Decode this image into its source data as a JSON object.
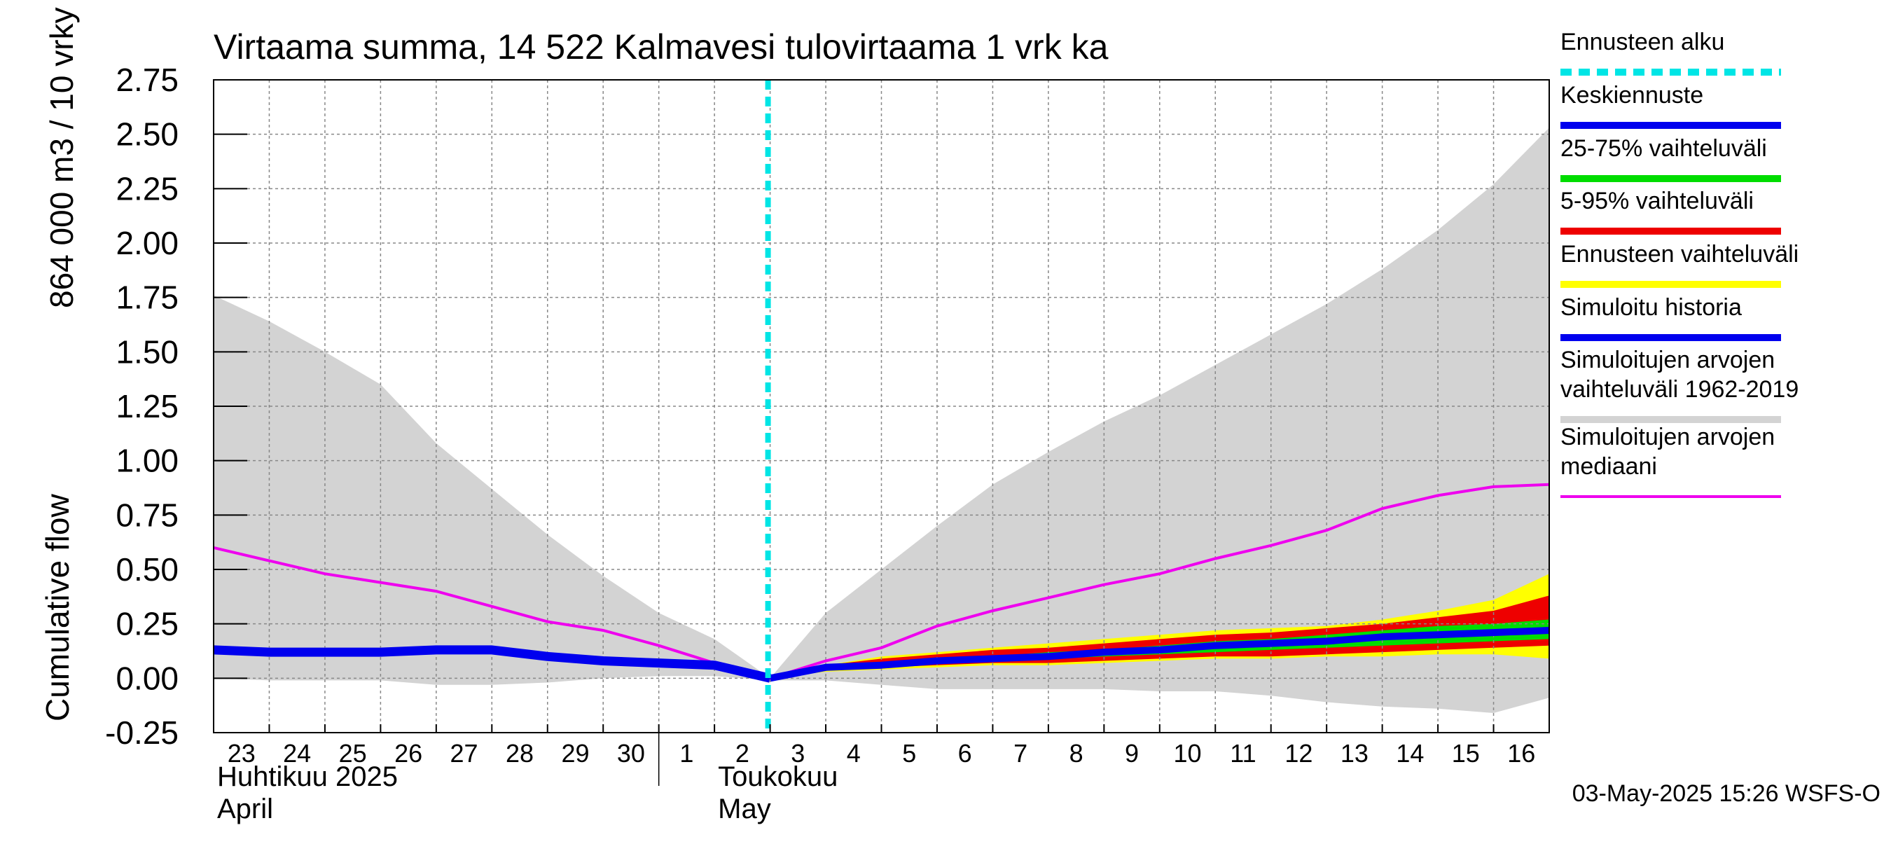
{
  "chart_data": {
    "type": "area",
    "title": "Virtaama summa, 14 522 Kalmavesi tulovirtaama 1 vrk ka",
    "ylabel_top": "864 000 m3 / 10 vrky",
    "ylabel_bottom": "Cumulative flow",
    "ylim": [
      -0.25,
      2.75
    ],
    "y_ticks": [
      -0.25,
      0.0,
      0.25,
      0.5,
      0.75,
      1.0,
      1.25,
      1.5,
      1.75,
      2.0,
      2.25,
      2.5,
      2.75
    ],
    "y_tick_labels": [
      "-0.25",
      "0.00",
      "0.25",
      "0.50",
      "0.75",
      "1.00",
      "1.25",
      "1.50",
      "1.75",
      "2.00",
      "2.25",
      "2.50",
      "2.75"
    ],
    "x_range_days": [
      0,
      24
    ],
    "x_day_labels": [
      "23",
      "24",
      "25",
      "26",
      "27",
      "28",
      "29",
      "30",
      "1",
      "2",
      "3",
      "4",
      "5",
      "6",
      "7",
      "8",
      "9",
      "10",
      "11",
      "12",
      "13",
      "14",
      "15",
      "16"
    ],
    "month_labels": [
      {
        "fi": "Huhtikuu  2025",
        "en": "April",
        "day": 0
      },
      {
        "fi": "Toukokuu",
        "en": "May",
        "day": 9
      }
    ],
    "month_boundary_day": 8,
    "forecast_start_day": 10,
    "grid": true,
    "legend_position": "right",
    "footer": "03-May-2025 15:26 WSFS-O",
    "colors": {
      "forecast_start": "#00e5e5",
      "mean_forecast": "#0000ee",
      "band_25_75": "#00dd00",
      "band_5_95": "#ee0000",
      "forecast_range": "#ffff00",
      "simulated_history": "#0000ee",
      "historical_range": "#d3d3d3",
      "historical_median": "#ee00ee"
    },
    "legend": [
      {
        "label": "Ennusteen alku",
        "style": "dashed",
        "color": "#00e5e5"
      },
      {
        "label": "Keskiennuste",
        "style": "line",
        "color": "#0000ee"
      },
      {
        "label": "25-75% vaihteluväli",
        "style": "line",
        "color": "#00dd00"
      },
      {
        "label": "5-95% vaihteluväli",
        "style": "line",
        "color": "#ee0000"
      },
      {
        "label": "Ennusteen vaihteluväli",
        "style": "line",
        "color": "#ffff00"
      },
      {
        "label": "Simuloitu historia",
        "style": "line",
        "color": "#0000ee"
      },
      {
        "label": "Simuloitujen arvojen\nvaihteluväli 1962-2019",
        "style": "line",
        "color": "#d3d3d3"
      },
      {
        "label": "Simuloitujen arvojen\nmediaani",
        "style": "line",
        "color": "#ee00ee"
      }
    ],
    "series": {
      "historical_range_upper": [
        [
          0,
          1.76
        ],
        [
          1,
          1.64
        ],
        [
          2,
          1.5
        ],
        [
          3,
          1.35
        ],
        [
          4,
          1.08
        ],
        [
          5,
          0.87
        ],
        [
          6,
          0.66
        ],
        [
          7,
          0.47
        ],
        [
          8,
          0.3
        ],
        [
          9,
          0.18
        ],
        [
          10,
          0.0
        ],
        [
          11,
          0.3
        ],
        [
          12,
          0.5
        ],
        [
          13,
          0.7
        ],
        [
          14,
          0.89
        ],
        [
          15,
          1.04
        ],
        [
          16,
          1.18
        ],
        [
          17,
          1.3
        ],
        [
          18,
          1.44
        ],
        [
          19,
          1.58
        ],
        [
          20,
          1.72
        ],
        [
          21,
          1.88
        ],
        [
          22,
          2.06
        ],
        [
          23,
          2.27
        ],
        [
          24,
          2.53
        ]
      ],
      "historical_range_lower": [
        [
          0,
          0.0
        ],
        [
          1,
          -0.01
        ],
        [
          2,
          -0.01
        ],
        [
          3,
          -0.01
        ],
        [
          4,
          -0.03
        ],
        [
          5,
          -0.03
        ],
        [
          6,
          -0.02
        ],
        [
          7,
          0.0
        ],
        [
          8,
          0.01
        ],
        [
          9,
          0.01
        ],
        [
          10,
          -0.01
        ],
        [
          11,
          -0.01
        ],
        [
          12,
          -0.03
        ],
        [
          13,
          -0.05
        ],
        [
          14,
          -0.05
        ],
        [
          15,
          -0.05
        ],
        [
          16,
          -0.05
        ],
        [
          17,
          -0.06
        ],
        [
          18,
          -0.06
        ],
        [
          19,
          -0.08
        ],
        [
          20,
          -0.11
        ],
        [
          21,
          -0.13
        ],
        [
          22,
          -0.14
        ],
        [
          23,
          -0.16
        ],
        [
          24,
          -0.09
        ]
      ],
      "historical_median": [
        [
          0,
          0.6
        ],
        [
          1,
          0.54
        ],
        [
          2,
          0.48
        ],
        [
          3,
          0.44
        ],
        [
          4,
          0.4
        ],
        [
          5,
          0.33
        ],
        [
          6,
          0.26
        ],
        [
          7,
          0.22
        ],
        [
          8,
          0.15
        ],
        [
          9,
          0.07
        ],
        [
          10,
          0.0
        ],
        [
          11,
          0.08
        ],
        [
          12,
          0.14
        ],
        [
          13,
          0.24
        ],
        [
          14,
          0.31
        ],
        [
          15,
          0.37
        ],
        [
          16,
          0.43
        ],
        [
          17,
          0.48
        ],
        [
          18,
          0.55
        ],
        [
          19,
          0.61
        ],
        [
          20,
          0.68
        ],
        [
          21,
          0.78
        ],
        [
          22,
          0.84
        ],
        [
          23,
          0.88
        ],
        [
          24,
          0.89
        ]
      ],
      "simulated_history": [
        [
          0,
          0.13
        ],
        [
          1,
          0.12
        ],
        [
          2,
          0.12
        ],
        [
          3,
          0.12
        ],
        [
          4,
          0.13
        ],
        [
          5,
          0.13
        ],
        [
          6,
          0.1
        ],
        [
          7,
          0.08
        ],
        [
          8,
          0.07
        ],
        [
          9,
          0.06
        ],
        [
          10,
          0.0
        ]
      ],
      "forecast_range_upper": [
        [
          10,
          0.0
        ],
        [
          11,
          0.06
        ],
        [
          12,
          0.1
        ],
        [
          13,
          0.12
        ],
        [
          14,
          0.14
        ],
        [
          15,
          0.16
        ],
        [
          16,
          0.18
        ],
        [
          17,
          0.2
        ],
        [
          18,
          0.22
        ],
        [
          19,
          0.23
        ],
        [
          20,
          0.24
        ],
        [
          21,
          0.27
        ],
        [
          22,
          0.31
        ],
        [
          23,
          0.36
        ],
        [
          24,
          0.48
        ]
      ],
      "forecast_range_lower": [
        [
          10,
          0.0
        ],
        [
          11,
          0.03
        ],
        [
          12,
          0.04
        ],
        [
          13,
          0.05
        ],
        [
          14,
          0.06
        ],
        [
          15,
          0.06
        ],
        [
          16,
          0.07
        ],
        [
          17,
          0.08
        ],
        [
          18,
          0.09
        ],
        [
          19,
          0.09
        ],
        [
          20,
          0.1
        ],
        [
          21,
          0.1
        ],
        [
          22,
          0.11
        ],
        [
          23,
          0.11
        ],
        [
          24,
          0.09
        ]
      ],
      "band_5_95_upper": [
        [
          10,
          0.0
        ],
        [
          11,
          0.06
        ],
        [
          12,
          0.09
        ],
        [
          13,
          0.11
        ],
        [
          14,
          0.13
        ],
        [
          15,
          0.14
        ],
        [
          16,
          0.16
        ],
        [
          17,
          0.18
        ],
        [
          18,
          0.2
        ],
        [
          19,
          0.21
        ],
        [
          20,
          0.23
        ],
        [
          21,
          0.25
        ],
        [
          22,
          0.28
        ],
        [
          23,
          0.31
        ],
        [
          24,
          0.38
        ]
      ],
      "band_5_95_lower": [
        [
          10,
          0.0
        ],
        [
          11,
          0.04
        ],
        [
          12,
          0.05
        ],
        [
          13,
          0.06
        ],
        [
          14,
          0.07
        ],
        [
          15,
          0.07
        ],
        [
          16,
          0.08
        ],
        [
          17,
          0.09
        ],
        [
          18,
          0.1
        ],
        [
          19,
          0.1
        ],
        [
          20,
          0.11
        ],
        [
          21,
          0.12
        ],
        [
          22,
          0.13
        ],
        [
          23,
          0.14
        ],
        [
          24,
          0.15
        ]
      ],
      "band_25_75_upper": [
        [
          10,
          0.0
        ],
        [
          11,
          0.05
        ],
        [
          12,
          0.07
        ],
        [
          13,
          0.09
        ],
        [
          14,
          0.1
        ],
        [
          15,
          0.12
        ],
        [
          16,
          0.13
        ],
        [
          17,
          0.15
        ],
        [
          18,
          0.17
        ],
        [
          19,
          0.18
        ],
        [
          20,
          0.2
        ],
        [
          21,
          0.22
        ],
        [
          22,
          0.24
        ],
        [
          23,
          0.25
        ],
        [
          24,
          0.27
        ]
      ],
      "band_25_75_lower": [
        [
          10,
          0.0
        ],
        [
          11,
          0.04
        ],
        [
          12,
          0.06
        ],
        [
          13,
          0.07
        ],
        [
          14,
          0.08
        ],
        [
          15,
          0.09
        ],
        [
          16,
          0.1
        ],
        [
          17,
          0.11
        ],
        [
          18,
          0.12
        ],
        [
          19,
          0.13
        ],
        [
          20,
          0.14
        ],
        [
          21,
          0.15
        ],
        [
          22,
          0.16
        ],
        [
          23,
          0.17
        ],
        [
          24,
          0.18
        ]
      ],
      "mean_forecast": [
        [
          10,
          0.0
        ],
        [
          11,
          0.05
        ],
        [
          12,
          0.06
        ],
        [
          13,
          0.08
        ],
        [
          14,
          0.09
        ],
        [
          15,
          0.1
        ],
        [
          16,
          0.12
        ],
        [
          17,
          0.13
        ],
        [
          18,
          0.15
        ],
        [
          19,
          0.16
        ],
        [
          20,
          0.17
        ],
        [
          21,
          0.19
        ],
        [
          22,
          0.2
        ],
        [
          23,
          0.21
        ],
        [
          24,
          0.22
        ]
      ]
    }
  }
}
